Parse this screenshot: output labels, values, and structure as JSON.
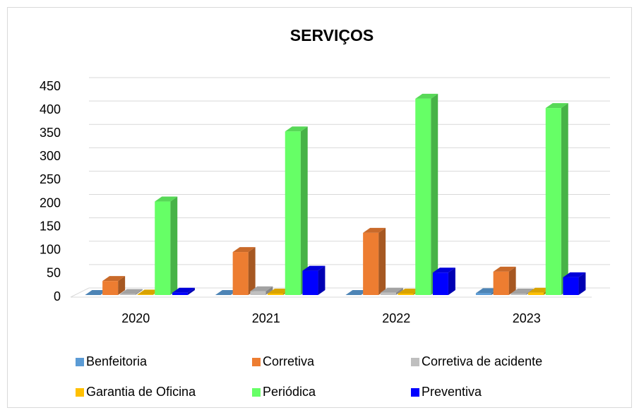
{
  "chart_data": {
    "type": "bar3d",
    "title": "SERVIÇOS",
    "categories": [
      "2020",
      "2021",
      "2022",
      "2023"
    ],
    "series": [
      {
        "name": "Benfeitoria",
        "color": "#5b9bd5",
        "values": [
          0,
          0,
          0,
          4
        ]
      },
      {
        "name": "Corretiva",
        "color": "#ed7d31",
        "values": [
          30,
          92,
          133,
          50
        ]
      },
      {
        "name": "Corretiva de acidente",
        "color": "#bfbfbf",
        "values": [
          2,
          8,
          5,
          3
        ]
      },
      {
        "name": "Garantia de Oficina",
        "color": "#ffc000",
        "values": [
          1,
          3,
          3,
          5
        ]
      },
      {
        "name": "Periódica",
        "color": "#66ff66",
        "values": [
          200,
          350,
          420,
          400
        ]
      },
      {
        "name": "Preventiva",
        "color": "#0000ff",
        "values": [
          5,
          52,
          48,
          38
        ]
      }
    ],
    "ylim": [
      0,
      450
    ],
    "yticks": [
      0,
      50,
      100,
      150,
      200,
      250,
      300,
      350,
      400,
      450
    ],
    "grid": true,
    "legend": "bottom"
  }
}
